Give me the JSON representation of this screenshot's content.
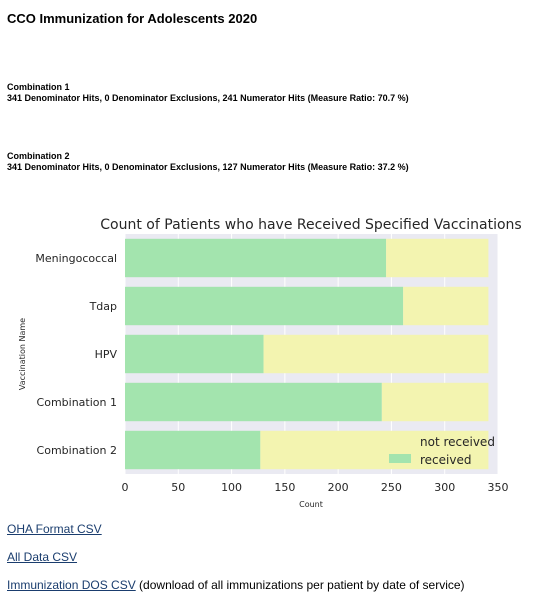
{
  "page": {
    "title": "CCO Immunization for Adolescents 2020"
  },
  "combinations": [
    {
      "name": "Combination 1",
      "stats": "341 Denominator Hits, 0 Denominator Exclusions, 241 Numerator Hits (Measure Ratio: 70.7 %)"
    },
    {
      "name": "Combination 2",
      "stats": "341 Denominator Hits, 0 Denominator Exclusions, 127 Numerator Hits (Measure Ratio: 37.2 %)"
    }
  ],
  "colors": {
    "received": "#a3e4ae",
    "not_received": "#f3f4b0",
    "plot_bg": "#eaeaf2",
    "grid": "#ffffff",
    "link": "#1a3d6e"
  },
  "chart_data": {
    "type": "bar",
    "orientation": "horizontal",
    "stacked": true,
    "title": "Count of Patients who have Received Specified Vaccinations",
    "xlabel": "Count",
    "ylabel": "Vaccination Name",
    "categories": [
      "Meningococcal",
      "Tdap",
      "HPV",
      "Combination 1",
      "Combination 2"
    ],
    "series": [
      {
        "name": "received",
        "values": [
          245,
          261,
          130,
          241,
          127
        ]
      },
      {
        "name": "not received",
        "values": [
          96,
          80,
          211,
          100,
          214
        ]
      }
    ],
    "xlim": [
      0,
      350
    ],
    "xticks": [
      "0",
      "50",
      "100",
      "150",
      "200",
      "250",
      "300",
      "350"
    ],
    "grid": true,
    "legend_position": "lower-right"
  },
  "links": [
    {
      "label": "OHA Format CSV",
      "description": ""
    },
    {
      "label": "All Data CSV",
      "description": ""
    },
    {
      "label": "Immunization DOS CSV",
      "description": " (download of all immunizations per patient by date of service)"
    }
  ]
}
